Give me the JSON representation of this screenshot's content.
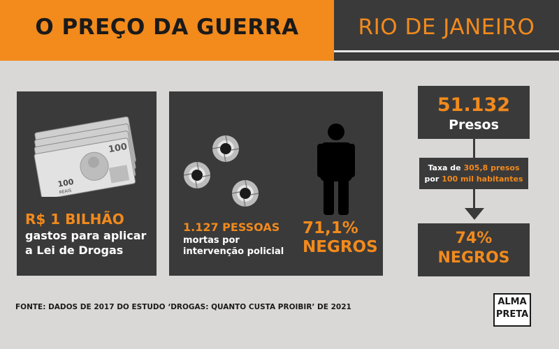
{
  "header": {
    "title": "O PREÇO DA GUERRA",
    "region": "RIO DE JANEIRO"
  },
  "spending": {
    "amount": "R$ 1 BILHÃO",
    "line1": "gastos para aplicar",
    "line2": "a Lei de Drogas",
    "banknote_label": "100",
    "banknote_currency": "REAIS"
  },
  "deaths": {
    "count": "1.127 PESSOAS",
    "line1": "mortas por",
    "line2": "intervenção policial",
    "percent": "71,1%",
    "group": "NEGROS"
  },
  "prison": {
    "count": "51.132",
    "label": "Presos",
    "rate_prefix": "Taxa de",
    "rate_value": "305,8 presos",
    "rate_mid": "por",
    "rate_base": "100 mil habitantes",
    "percent": "74%",
    "group": "NEGROS"
  },
  "source": "FONTE: DADOS DE 2017 DO ESTUDO ‘DROGAS: QUANTO CUSTA PROIBIR’ DE 2021",
  "logo": {
    "line1": "ALMA",
    "line2": "PRETA"
  },
  "icons": [
    "banknotes-icon",
    "bullet-hole-icon",
    "person-icon",
    "arrow-down-icon"
  ],
  "colors": {
    "accent": "#f28a1c",
    "panel": "#3a3a3a",
    "background": "#d9d8d6"
  }
}
